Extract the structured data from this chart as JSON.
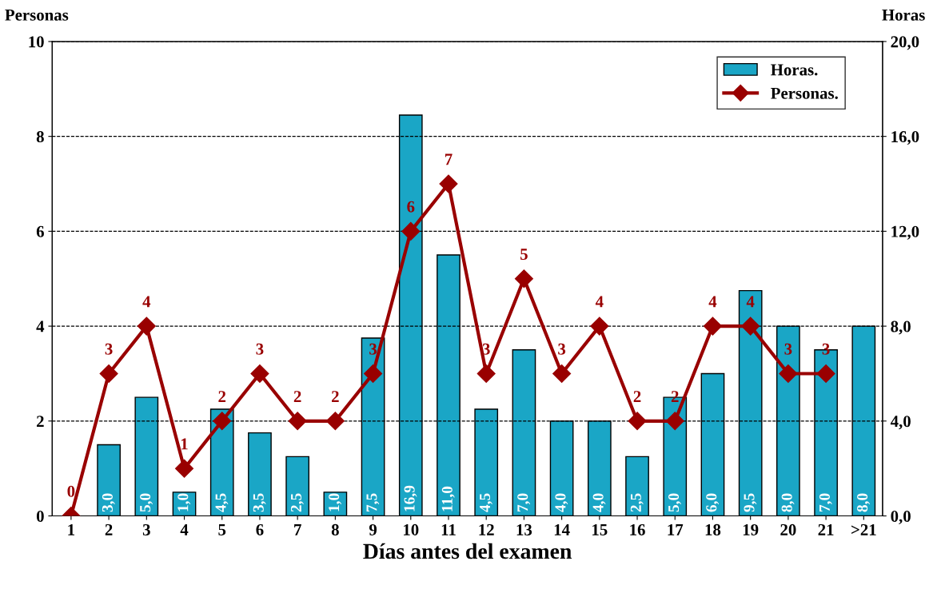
{
  "chart_data": {
    "type": "bar",
    "xlabel": "Días antes del examen",
    "ylabel": "Personas",
    "y2label": "Horas",
    "categories": [
      "1",
      "2",
      "3",
      "4",
      "5",
      "6",
      "7",
      "8",
      "9",
      "10",
      "11",
      "12",
      "13",
      "14",
      "15",
      "16",
      "17",
      "18",
      "19",
      "20",
      "21",
      ">21"
    ],
    "series": [
      {
        "name": "Horas.",
        "axis": "y2",
        "color": "#1aa6c6",
        "values": [
          null,
          3.0,
          5.0,
          1.0,
          4.5,
          3.5,
          2.5,
          1.0,
          7.5,
          16.9,
          11.0,
          4.5,
          7.0,
          4.0,
          4.0,
          2.5,
          5.0,
          6.0,
          9.5,
          8.0,
          7.0,
          8.0
        ],
        "value_labels": [
          null,
          "3,0",
          "5,0",
          "1,0",
          "4,5",
          "3,5",
          "2,5",
          "1,0",
          "7,5",
          "16,9",
          "11,0",
          "4,5",
          "7,0",
          "4,0",
          "4,0",
          "2,5",
          "5,0",
          "6,0",
          "9,5",
          "8,0",
          "7,0",
          "8,0"
        ]
      },
      {
        "name": "Personas.",
        "type": "line",
        "color": "#990000",
        "marker": "diamond",
        "values": [
          0,
          3,
          4,
          1,
          2,
          3,
          2,
          2,
          3,
          6,
          7,
          3,
          5,
          3,
          4,
          2,
          2,
          4,
          4,
          3,
          3,
          null
        ],
        "value_labels": [
          "0",
          "3",
          "4",
          "1",
          "2",
          "3",
          "2",
          "2",
          "3",
          "6",
          "7",
          "3",
          "5",
          "3",
          "4",
          "2",
          "2",
          "4",
          "4",
          "3",
          "3",
          null
        ]
      }
    ],
    "ylim": [
      0,
      10
    ],
    "yticks": [
      0,
      2,
      4,
      6,
      8,
      10
    ],
    "y2lim": [
      0,
      20
    ],
    "y2ticks": [
      {
        "value": 0,
        "label": "0,0"
      },
      {
        "value": 4,
        "label": "4,0"
      },
      {
        "value": 8,
        "label": "8,0"
      },
      {
        "value": 12,
        "label": "12,0"
      },
      {
        "value": 16,
        "label": "16,0"
      },
      {
        "value": 20,
        "label": "20,0"
      }
    ],
    "grid": "y",
    "legend": "top right"
  }
}
